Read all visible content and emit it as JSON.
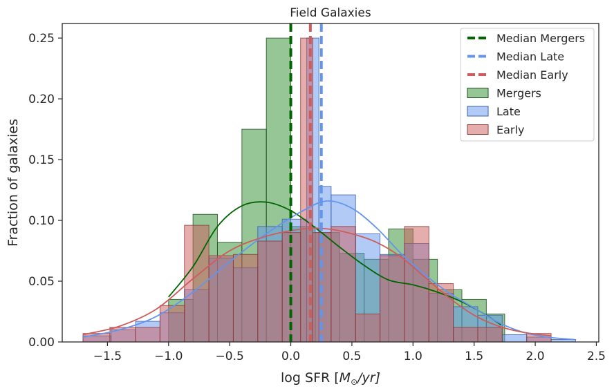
{
  "chart_data": {
    "type": "bar",
    "title": "Field Galaxies",
    "xlabel": "log SFR [",
    "xlabel_math": "M",
    "xlabel_sub": "⊙",
    "xlabel_tail": "/yr]",
    "ylabel": "Fraction of galaxies",
    "xlim": [
      -1.87,
      2.52
    ],
    "ylim": [
      0,
      0.262
    ],
    "xticks": [
      -1.5,
      -1.0,
      -0.5,
      0.0,
      0.5,
      1.0,
      1.5,
      2.0,
      2.5
    ],
    "xtick_labels": [
      "−1.5",
      "−1.0",
      "−0.5",
      "0.0",
      "0.5",
      "1.0",
      "1.5",
      "2.0",
      "2.5"
    ],
    "yticks": [
      0.0,
      0.05,
      0.1,
      0.15,
      0.2,
      0.25
    ],
    "ytick_labels": [
      "0.00",
      "0.05",
      "0.10",
      "0.15",
      "0.20",
      "0.25"
    ],
    "grid": false,
    "legend_placement": "top-right",
    "series": [
      {
        "name": "Mergers",
        "color": "#2e8b2e",
        "edge": "#1f4d1f",
        "bins": [
          {
            "x0": -1.0,
            "x1": -0.8,
            "y": 0.035
          },
          {
            "x0": -0.8,
            "x1": -0.6,
            "y": 0.105
          },
          {
            "x0": -0.6,
            "x1": -0.4,
            "y": 0.082
          },
          {
            "x0": -0.4,
            "x1": -0.2,
            "y": 0.175
          },
          {
            "x0": -0.2,
            "x1": 0.0,
            "y": 0.25
          },
          {
            "x0": 0.0,
            "x1": 0.2,
            "y": 0.095
          },
          {
            "x0": 0.2,
            "x1": 0.4,
            "y": 0.09
          },
          {
            "x0": 0.4,
            "x1": 0.6,
            "y": 0.073
          },
          {
            "x0": 0.6,
            "x1": 0.8,
            "y": 0.068
          },
          {
            "x0": 0.8,
            "x1": 1.0,
            "y": 0.093
          },
          {
            "x0": 1.0,
            "x1": 1.2,
            "y": 0.068
          },
          {
            "x0": 1.2,
            "x1": 1.4,
            "y": 0.043
          },
          {
            "x0": 1.4,
            "x1": 1.6,
            "y": 0.035
          },
          {
            "x0": 1.6,
            "x1": 1.75,
            "y": 0.023
          }
        ],
        "kde_x": [
          -1.0,
          -0.8,
          -0.6,
          -0.4,
          -0.2,
          0.0,
          0.2,
          0.4,
          0.6,
          0.8,
          1.0,
          1.2,
          1.4,
          1.6,
          1.72
        ],
        "kde_y": [
          0.037,
          0.062,
          0.095,
          0.112,
          0.115,
          0.108,
          0.094,
          0.078,
          0.063,
          0.051,
          0.047,
          0.041,
          0.033,
          0.022,
          0.014
        ],
        "median": 0.0,
        "median_name": "Median Mergers",
        "median_color": "#006400"
      },
      {
        "name": "Late",
        "color": "#6495ed",
        "edge": "#3b5ea8",
        "bins": [
          {
            "x0": -1.7,
            "x1": -1.47,
            "y": 0.005
          },
          {
            "x0": -1.47,
            "x1": -1.27,
            "y": 0.01
          },
          {
            "x0": -1.27,
            "x1": -1.07,
            "y": 0.017
          },
          {
            "x0": -1.07,
            "x1": -0.87,
            "y": 0.024
          },
          {
            "x0": -0.87,
            "x1": -0.67,
            "y": 0.043
          },
          {
            "x0": -0.67,
            "x1": -0.47,
            "y": 0.069
          },
          {
            "x0": -0.47,
            "x1": -0.27,
            "y": 0.061
          },
          {
            "x0": -0.27,
            "x1": -0.07,
            "y": 0.095
          },
          {
            "x0": -0.07,
            "x1": 0.13,
            "y": 0.101
          },
          {
            "x0": 0.13,
            "x1": 0.23,
            "y": 0.25
          },
          {
            "x0": 0.23,
            "x1": 0.33,
            "y": 0.128
          },
          {
            "x0": 0.33,
            "x1": 0.53,
            "y": 0.121
          },
          {
            "x0": 0.53,
            "x1": 0.73,
            "y": 0.089
          },
          {
            "x0": 0.73,
            "x1": 0.93,
            "y": 0.072
          },
          {
            "x0": 0.93,
            "x1": 1.13,
            "y": 0.081
          },
          {
            "x0": 1.13,
            "x1": 1.33,
            "y": 0.04
          },
          {
            "x0": 1.33,
            "x1": 1.53,
            "y": 0.029
          },
          {
            "x0": 1.53,
            "x1": 1.73,
            "y": 0.022
          },
          {
            "x0": 1.73,
            "x1": 1.93,
            "y": 0.006
          },
          {
            "x0": 1.93,
            "x1": 2.13,
            "y": 0.004
          },
          {
            "x0": 2.13,
            "x1": 2.33,
            "y": 0.002
          }
        ],
        "kde_x": [
          -1.7,
          -1.4,
          -1.1,
          -0.8,
          -0.5,
          -0.2,
          0.1,
          0.3,
          0.5,
          0.7,
          0.9,
          1.1,
          1.3,
          1.5,
          1.7,
          1.9,
          2.1,
          2.32
        ],
        "kde_y": [
          0.004,
          0.01,
          0.021,
          0.041,
          0.066,
          0.089,
          0.108,
          0.116,
          0.11,
          0.094,
          0.073,
          0.055,
          0.04,
          0.028,
          0.016,
          0.008,
          0.004,
          0.002
        ],
        "median": 0.25,
        "median_name": "Median Late",
        "median_color": "#6495ed"
      },
      {
        "name": "Early",
        "color": "#cd5c5c",
        "edge": "#8b3a3a",
        "bins": [
          {
            "x0": -1.7,
            "x1": -1.48,
            "y": 0.007
          },
          {
            "x0": -1.48,
            "x1": -1.27,
            "y": 0.012
          },
          {
            "x0": -1.27,
            "x1": -1.07,
            "y": 0.012
          },
          {
            "x0": -1.07,
            "x1": -0.87,
            "y": 0.03
          },
          {
            "x0": -0.87,
            "x1": -0.67,
            "y": 0.096
          },
          {
            "x0": -0.67,
            "x1": -0.47,
            "y": 0.071
          },
          {
            "x0": -0.47,
            "x1": -0.27,
            "y": 0.072
          },
          {
            "x0": -0.27,
            "x1": -0.07,
            "y": 0.083
          },
          {
            "x0": -0.07,
            "x1": 0.08,
            "y": 0.09
          },
          {
            "x0": 0.08,
            "x1": 0.18,
            "y": 0.25
          },
          {
            "x0": 0.18,
            "x1": 0.33,
            "y": 0.09
          },
          {
            "x0": 0.33,
            "x1": 0.53,
            "y": 0.095
          },
          {
            "x0": 0.53,
            "x1": 0.73,
            "y": 0.023
          },
          {
            "x0": 0.73,
            "x1": 0.93,
            "y": 0.071
          },
          {
            "x0": 0.93,
            "x1": 1.13,
            "y": 0.095
          },
          {
            "x0": 1.13,
            "x1": 1.33,
            "y": 0.048
          },
          {
            "x0": 1.33,
            "x1": 1.53,
            "y": 0.012
          },
          {
            "x0": 1.53,
            "x1": 1.73,
            "y": 0.012
          },
          {
            "x0": 1.93,
            "x1": 2.13,
            "y": 0.007
          }
        ],
        "kde_x": [
          -1.7,
          -1.4,
          -1.1,
          -0.8,
          -0.5,
          -0.2,
          0.1,
          0.3,
          0.5,
          0.7,
          0.9,
          1.1,
          1.3,
          1.5,
          1.7,
          1.9,
          2.13
        ],
        "kde_y": [
          0.006,
          0.013,
          0.027,
          0.052,
          0.075,
          0.087,
          0.093,
          0.093,
          0.089,
          0.082,
          0.07,
          0.053,
          0.036,
          0.022,
          0.013,
          0.008,
          0.005
        ],
        "median": 0.16,
        "median_name": "Median Early",
        "median_color": "#cd5c5c"
      }
    ]
  }
}
